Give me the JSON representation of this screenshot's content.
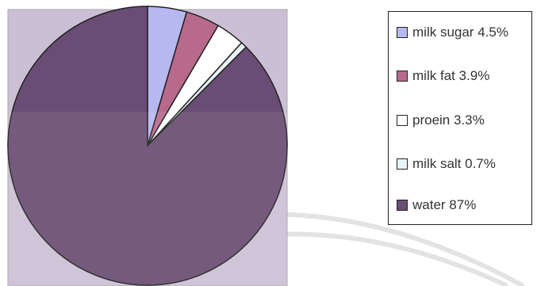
{
  "chart_data": {
    "type": "pie",
    "slices": [
      {
        "label": "milk sugar 4.5%",
        "value": 4.5,
        "color": "#b8b8f0"
      },
      {
        "label": "milk fat 3.9%",
        "value": 3.9,
        "color": "#b86a8c"
      },
      {
        "label": "proein 3.3%",
        "value": 3.3,
        "color": "#ffffff"
      },
      {
        "label": "milk salt 0.7%",
        "value": 0.7,
        "color": "#e8f4f8"
      },
      {
        "label": "water 87%",
        "value": 87,
        "color": "#6a4d74"
      }
    ],
    "start_angle_deg": 0,
    "direction": "clockwise",
    "plot_background": "#cbbfd5",
    "legend_position": "right"
  }
}
